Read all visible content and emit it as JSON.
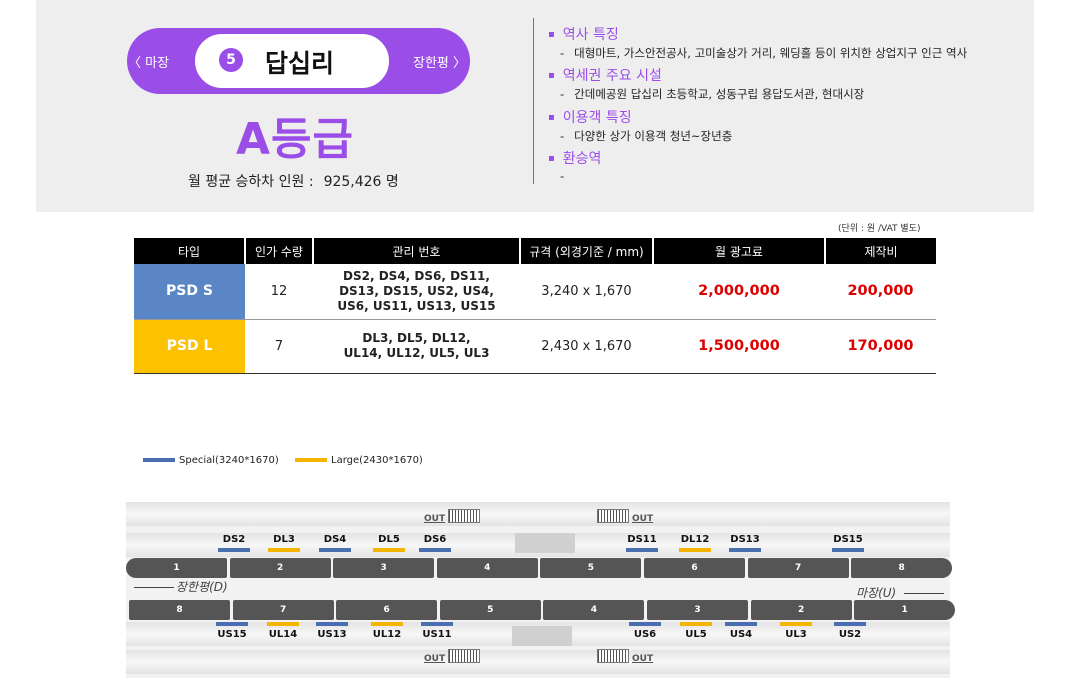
{
  "station": {
    "prev": "〈 마장",
    "next": "장한평 〉",
    "number": "5",
    "name": "답십리",
    "grade": "A등급",
    "ridership_label": "월 평균 승하차 인원 :",
    "ridership_value": "925,426 명"
  },
  "features": [
    {
      "title": "역사 특징",
      "desc": "대형마트, 가스안전공사, 고미술상가 거리, 웨딩홀 등이 위치한 상업지구 인근 역사"
    },
    {
      "title": "역세권 주요 시설",
      "desc": "간데메공원 답십리 초등학교, 성동구립 용답도서관, 현대시장"
    },
    {
      "title": "이용객 특징",
      "desc": "다양한 상가 이용객 청년~장년층"
    },
    {
      "title": "환승역",
      "desc": ""
    }
  ],
  "table": {
    "unit_note": "(단위 : 원 /VAT 별도)",
    "headers": [
      "타입",
      "인가 수량",
      "관리 번호",
      "규격 (외경기준 / mm)",
      "월 광고료",
      "제작비"
    ],
    "rows": [
      {
        "type": "PSD S",
        "count": "12",
        "ids": "DS2, DS4, DS6, DS11, DS13, DS15, US2, US4, US6, US11, US13, US15",
        "size": "3,240 x 1,670",
        "monthly": "2,000,000",
        "production": "200,000",
        "color": "#5b86c5"
      },
      {
        "type": "PSD L",
        "count": "7",
        "ids": "DL3, DL5, DL12, UL14, UL12, UL5, UL3",
        "size": "2,430 x 1,670",
        "monthly": "1,500,000",
        "production": "170,000",
        "color": "#fcc100"
      }
    ]
  },
  "legend": [
    {
      "label": "Special(3240*1670)",
      "color": "#4a6fb0"
    },
    {
      "label": "Large(2430*1670)",
      "color": "#f5b400"
    }
  ],
  "diagram": {
    "out_label": "OUT",
    "down_direction": "장한평(D)",
    "up_direction": "마장(U)",
    "top_cars": [
      "1",
      "2",
      "3",
      "4",
      "5",
      "6",
      "7",
      "8"
    ],
    "bottom_cars": [
      "8",
      "7",
      "6",
      "5",
      "4",
      "3",
      "2",
      "1"
    ],
    "top_markers": [
      "DS2",
      "DL3",
      "DS4",
      "DL5",
      "DS6",
      "DS11",
      "DL12",
      "DS13",
      "DS15"
    ],
    "bottom_markers": [
      "US15",
      "UL14",
      "US13",
      "UL12",
      "US11",
      "US6",
      "UL5",
      "US4",
      "UL3",
      "US2"
    ]
  }
}
